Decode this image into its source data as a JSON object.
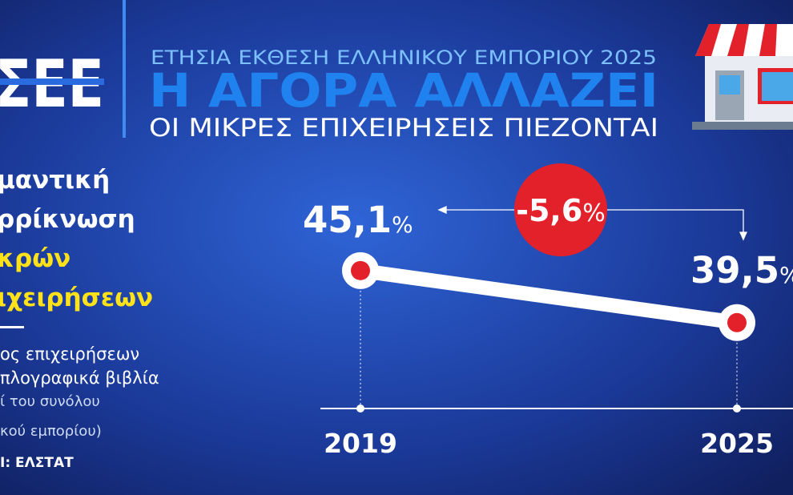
{
  "header": {
    "logo": "ΣΕΕ",
    "kicker": "ΕΤΗΣΙΑ ΕΚΘΕΣΗ ΕΛΛΗΝΙΚΟΥ ΕΜΠΟΡΙΟΥ 2025",
    "title": "Η ΑΓΟΡΑ ΑΛΛΑΖΕΙ",
    "subtitle": "ΟΙ ΜΙΚΡΕΣ ΕΠΙΧΕΙΡΗΣΕΙΣ ΠΙΕΖΟΝΤΑΙ"
  },
  "side": {
    "headline": [
      "μαντική",
      "ρρίκνωση",
      "κρών",
      "ιχειρήσεων"
    ],
    "description": [
      "ος επιχειρήσεων",
      "πλογραφικά βιβλία"
    ],
    "note": [
      "ί του συνόλου",
      "κού εμπορίου)"
    ],
    "source": "Ι: ΕΛΣΤΑΤ"
  },
  "chart_data": {
    "type": "line",
    "categories": [
      "2019",
      "2025"
    ],
    "values": [
      45.1,
      39.5
    ],
    "value_labels": [
      "45,1%",
      "39,5%"
    ],
    "color": "#ffffff",
    "marker_color": "#e3212b",
    "ylim": [
      30,
      50
    ],
    "change": {
      "value": -5.6,
      "label": "-5,6%"
    }
  }
}
